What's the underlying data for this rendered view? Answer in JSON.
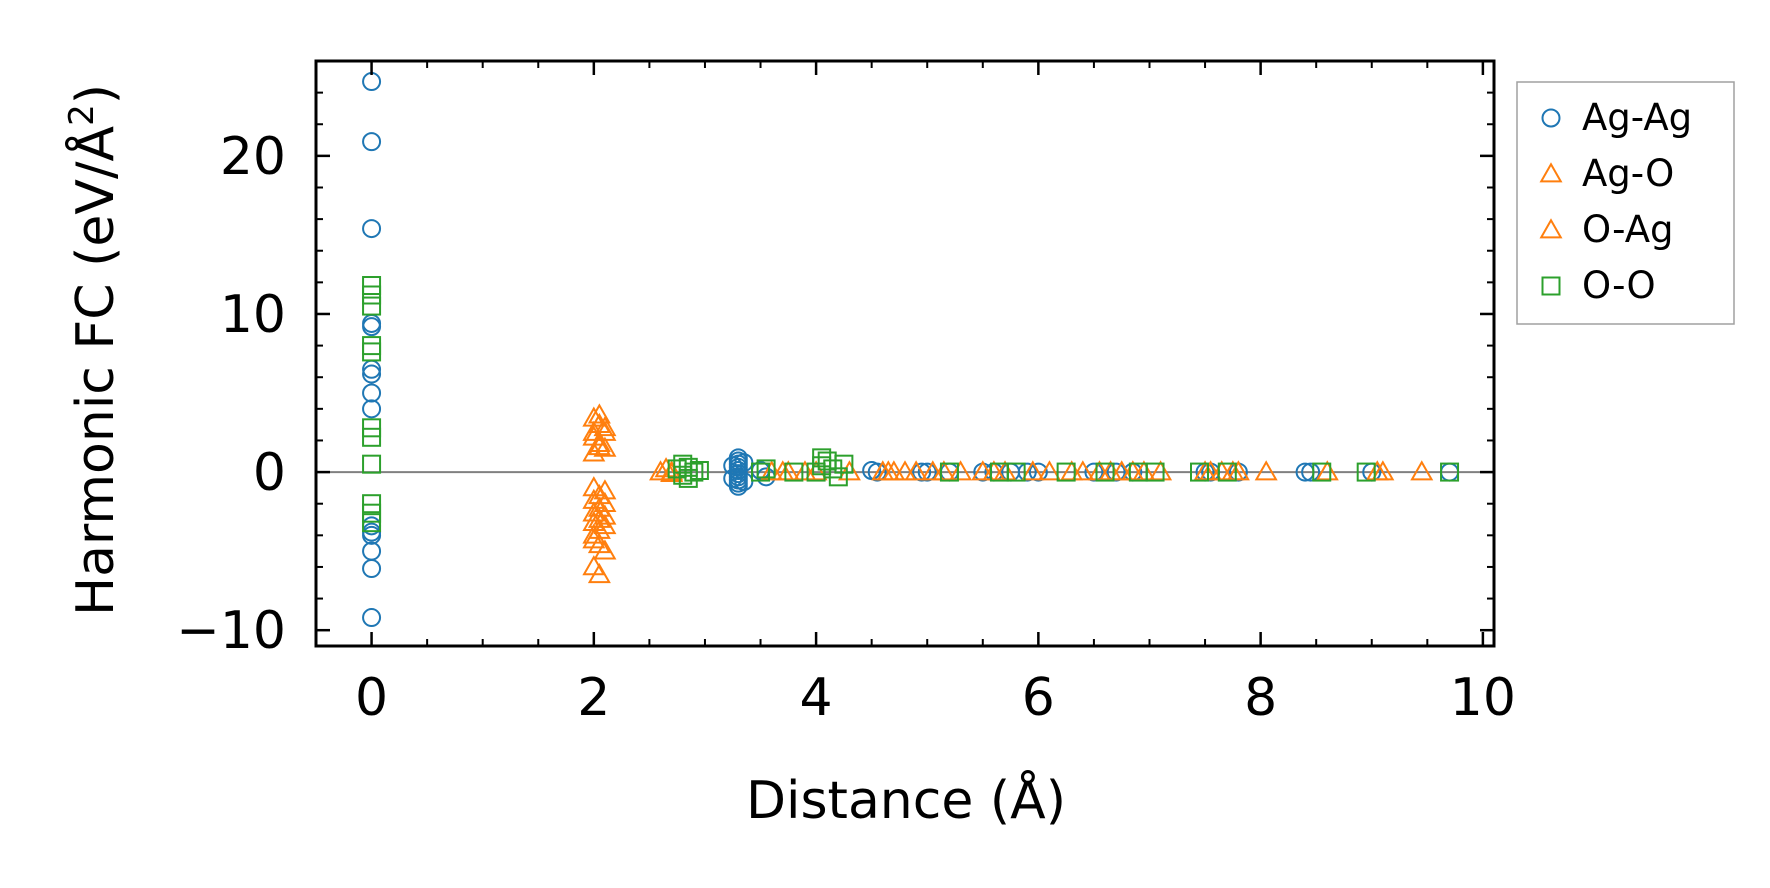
{
  "chart_data": {
    "type": "scatter",
    "xlabel": "Distance (Å)",
    "ylabel": "Harmonic FC (eV/Å",
    "ylabel_sup": "2",
    "ylabel_close": ")",
    "xlim": [
      -0.5,
      10.1
    ],
    "ylim": [
      -11,
      26
    ],
    "xticks": [
      0,
      2,
      4,
      6,
      8,
      10
    ],
    "yticks": [
      -10,
      0,
      10,
      20
    ],
    "xtick_labels": [
      "0",
      "2",
      "4",
      "6",
      "8",
      "10"
    ],
    "ytick_labels": [
      "−10",
      "0",
      "10",
      "20"
    ],
    "x_minor_step": 0.5,
    "y_minor_step": 2,
    "zero_line": true,
    "grid": false,
    "legend_position": "outside-right-top",
    "series": [
      {
        "name": "Ag-Ag",
        "marker": "circle",
        "color": "#1f77b4",
        "points": [
          [
            0,
            24.7
          ],
          [
            0,
            20.9
          ],
          [
            0,
            15.4
          ],
          [
            0,
            9.4
          ],
          [
            0,
            9.2
          ],
          [
            0,
            6.5
          ],
          [
            0,
            6.2
          ],
          [
            0,
            5.0
          ],
          [
            0,
            4.0
          ],
          [
            0,
            -3.4
          ],
          [
            0,
            -3.8
          ],
          [
            0,
            -4.0
          ],
          [
            0,
            -5.0
          ],
          [
            0,
            -6.1
          ],
          [
            0,
            -9.2
          ],
          [
            3.3,
            0.9
          ],
          [
            3.3,
            0.7
          ],
          [
            3.3,
            0.5
          ],
          [
            3.3,
            0.3
          ],
          [
            3.3,
            0.1
          ],
          [
            3.3,
            -0.1
          ],
          [
            3.3,
            -0.3
          ],
          [
            3.3,
            -0.5
          ],
          [
            3.3,
            -0.7
          ],
          [
            3.3,
            -0.9
          ],
          [
            3.35,
            0.6
          ],
          [
            3.35,
            -0.6
          ],
          [
            3.25,
            0.4
          ],
          [
            3.25,
            -0.4
          ],
          [
            3.5,
            0.1
          ],
          [
            3.55,
            -0.3
          ],
          [
            4.5,
            0.1
          ],
          [
            4.55,
            0.0
          ],
          [
            4.95,
            0.0
          ],
          [
            5.0,
            0.0
          ],
          [
            5.2,
            0.0
          ],
          [
            5.5,
            0.0
          ],
          [
            5.6,
            0.0
          ],
          [
            5.75,
            0.0
          ],
          [
            5.9,
            0.0
          ],
          [
            6.0,
            0.0
          ],
          [
            6.5,
            0.0
          ],
          [
            6.7,
            0.0
          ],
          [
            6.85,
            0.0
          ],
          [
            7.5,
            0.0
          ],
          [
            7.55,
            0.0
          ],
          [
            7.8,
            0.0
          ],
          [
            8.4,
            0.0
          ],
          [
            8.45,
            0.0
          ],
          [
            9.0,
            0.0
          ],
          [
            9.7,
            0.0
          ]
        ]
      },
      {
        "name": "Ag-O",
        "marker": "triangle",
        "color": "#ff7f0e",
        "points": [
          [
            2.0,
            3.4
          ],
          [
            2.05,
            3.0
          ],
          [
            2.1,
            2.5
          ],
          [
            2.0,
            2.2
          ],
          [
            2.05,
            1.8
          ],
          [
            2.1,
            1.5
          ],
          [
            2.0,
            1.2
          ],
          [
            2.0,
            -1.0
          ],
          [
            2.05,
            -1.5
          ],
          [
            2.1,
            -2.0
          ],
          [
            2.0,
            -2.6
          ],
          [
            2.05,
            -3.0
          ],
          [
            2.1,
            -3.4
          ],
          [
            2.0,
            -4.0
          ],
          [
            2.05,
            -4.6
          ],
          [
            2.0,
            -6.0
          ],
          [
            2.05,
            -6.5
          ],
          [
            2.6,
            0.0
          ],
          [
            2.65,
            0.2
          ],
          [
            2.7,
            -0.1
          ],
          [
            3.6,
            0.0
          ],
          [
            3.7,
            0.0
          ],
          [
            3.9,
            0.0
          ],
          [
            4.3,
            0.0
          ],
          [
            4.6,
            0.0
          ],
          [
            4.7,
            0.0
          ],
          [
            4.8,
            0.0
          ],
          [
            5.05,
            0.0
          ],
          [
            5.3,
            0.0
          ],
          [
            5.5,
            0.0
          ],
          [
            5.7,
            0.0
          ],
          [
            6.1,
            0.0
          ],
          [
            6.3,
            0.0
          ],
          [
            6.55,
            0.0
          ],
          [
            6.75,
            0.0
          ],
          [
            6.95,
            0.0
          ],
          [
            7.1,
            0.0
          ],
          [
            7.5,
            0.0
          ],
          [
            7.65,
            0.0
          ],
          [
            7.8,
            0.0
          ],
          [
            8.05,
            0.0
          ],
          [
            8.6,
            0.0
          ],
          [
            9.1,
            0.0
          ],
          [
            9.45,
            0.0
          ]
        ]
      },
      {
        "name": "O-Ag",
        "marker": "triangle",
        "color": "#ff7f0e",
        "points": [
          [
            2.05,
            3.6
          ],
          [
            2.1,
            2.8
          ],
          [
            2.0,
            2.5
          ],
          [
            2.05,
            1.6
          ],
          [
            2.1,
            -1.2
          ],
          [
            2.0,
            -1.8
          ],
          [
            2.05,
            -2.3
          ],
          [
            2.1,
            -2.8
          ],
          [
            2.0,
            -3.2
          ],
          [
            2.05,
            -3.7
          ],
          [
            2.0,
            -4.3
          ],
          [
            2.1,
            -5.0
          ],
          [
            2.7,
            0.0
          ],
          [
            3.75,
            0.0
          ],
          [
            4.0,
            0.0
          ],
          [
            4.65,
            0.0
          ],
          [
            4.9,
            0.0
          ],
          [
            5.15,
            0.0
          ],
          [
            5.6,
            0.0
          ],
          [
            5.95,
            0.0
          ],
          [
            6.4,
            0.0
          ],
          [
            6.65,
            0.0
          ],
          [
            6.85,
            0.0
          ],
          [
            7.55,
            0.0
          ],
          [
            7.75,
            0.0
          ],
          [
            9.05,
            0.0
          ]
        ]
      },
      {
        "name": "O-O",
        "marker": "square",
        "color": "#2ca02c",
        "points": [
          [
            0,
            11.8
          ],
          [
            0,
            11.2
          ],
          [
            0,
            10.5
          ],
          [
            0,
            8.0
          ],
          [
            0,
            7.6
          ],
          [
            0,
            2.8
          ],
          [
            0,
            2.2
          ],
          [
            0,
            0.5
          ],
          [
            0,
            -2.0
          ],
          [
            0,
            -2.6
          ],
          [
            0,
            -3.2
          ],
          [
            2.8,
            0.5
          ],
          [
            2.85,
            0.3
          ],
          [
            2.9,
            0.0
          ],
          [
            2.8,
            -0.2
          ],
          [
            2.85,
            -0.4
          ],
          [
            2.95,
            0.1
          ],
          [
            2.75,
            0.2
          ],
          [
            3.5,
            0.0
          ],
          [
            3.55,
            0.2
          ],
          [
            3.8,
            0.0
          ],
          [
            4.05,
            0.9
          ],
          [
            4.05,
            0.4
          ],
          [
            4.1,
            0.7
          ],
          [
            4.15,
            0.2
          ],
          [
            4.2,
            -0.3
          ],
          [
            4.25,
            0.5
          ],
          [
            4.0,
            0.0
          ],
          [
            5.2,
            0.0
          ],
          [
            5.65,
            0.0
          ],
          [
            5.8,
            0.0
          ],
          [
            6.25,
            0.0
          ],
          [
            6.6,
            0.0
          ],
          [
            6.9,
            0.0
          ],
          [
            7.05,
            0.0
          ],
          [
            7.45,
            0.0
          ],
          [
            7.7,
            0.0
          ],
          [
            8.55,
            0.0
          ],
          [
            8.95,
            0.0
          ],
          [
            9.7,
            0.0
          ]
        ]
      }
    ]
  }
}
